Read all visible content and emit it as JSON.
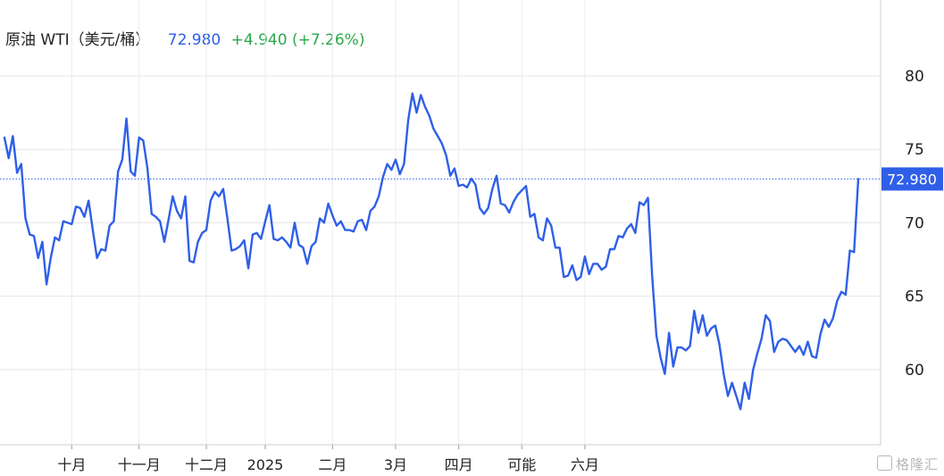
{
  "header": {
    "title": "原油 WTI（美元/桶）",
    "price": "72.980",
    "change": "+4.940 (+7.26%)"
  },
  "watermark": "格隆汇",
  "colors": {
    "line": "#2f5fe8",
    "price_label_bg": "#2f5fe8",
    "change_up": "#2aa84a",
    "grid": "#e6e6e6"
  },
  "chart_data": {
    "type": "line",
    "title": "原油 WTI（美元/桶）",
    "xlabel": "",
    "ylabel": "",
    "ylim": [
      55.5,
      85
    ],
    "y_ticks": [
      80,
      75,
      70,
      65,
      60
    ],
    "grid": true,
    "legend": "none",
    "last_price_label": "72.980",
    "x_tick_labels": [
      "十月",
      "十一月",
      "十二月",
      "2025",
      "二月",
      "3月",
      "四月",
      "可能",
      "六月"
    ],
    "x_tick_index": [
      16,
      32,
      48,
      62,
      78,
      93,
      108,
      123,
      138
    ],
    "series": [
      {
        "name": "",
        "values": [
          75.8,
          74.4,
          75.9,
          73.4,
          74.0,
          70.3,
          69.2,
          69.1,
          67.6,
          68.7,
          65.8,
          67.6,
          69.0,
          68.8,
          70.1,
          70.0,
          69.9,
          71.1,
          71.0,
          70.4,
          71.5,
          69.5,
          67.6,
          68.2,
          68.1,
          69.8,
          70.1,
          73.5,
          74.3,
          77.1,
          73.5,
          73.2,
          75.8,
          75.6,
          73.7,
          70.6,
          70.4,
          70.1,
          68.7,
          70.2,
          71.8,
          70.8,
          70.3,
          71.8,
          67.4,
          67.3,
          68.7,
          69.3,
          69.5,
          71.5,
          72.1,
          71.8,
          72.3,
          70.3,
          68.1,
          68.2,
          68.4,
          68.8,
          66.9,
          69.2,
          69.3,
          68.9,
          70.1,
          71.2,
          68.9,
          68.8,
          69.0,
          68.7,
          68.3,
          70.0,
          68.5,
          68.3,
          67.2,
          68.4,
          68.7,
          70.3,
          70.0,
          71.3,
          70.5,
          69.8,
          70.1,
          69.5,
          69.5,
          69.4,
          70.1,
          70.2,
          69.5,
          70.8,
          71.1,
          71.8,
          73.1,
          74.0,
          73.6,
          74.3,
          73.3,
          74.0,
          77.0,
          78.8,
          77.5,
          78.7,
          77.9,
          77.3,
          76.4,
          75.9,
          75.4,
          74.6,
          73.2,
          73.7,
          72.5,
          72.6,
          72.4,
          73.0,
          72.6,
          71.0,
          70.6,
          71.0,
          72.3,
          73.2,
          71.3,
          71.2,
          70.7,
          71.4,
          71.9,
          72.2,
          72.5,
          70.4,
          70.6,
          69.0,
          68.8,
          70.3,
          69.8,
          68.3,
          68.3,
          66.3,
          66.4,
          67.1,
          66.1,
          66.3,
          67.7,
          66.5,
          67.2,
          67.2,
          66.8,
          67.0,
          68.2,
          68.2,
          69.1,
          69.0,
          69.6,
          69.9,
          69.3,
          71.4,
          71.2,
          71.7,
          66.4,
          62.3,
          60.8,
          59.7,
          62.5,
          60.2,
          61.5,
          61.5,
          61.3,
          61.6,
          64.0,
          62.5,
          63.7,
          62.3,
          62.8,
          63.0,
          61.7,
          59.7,
          58.2,
          59.1,
          58.2,
          57.3,
          59.1,
          58.0,
          60.0,
          61.1,
          62.1,
          63.7,
          63.3,
          61.2,
          61.9,
          62.1,
          62.0,
          61.6,
          61.2,
          61.6,
          61.0,
          61.9,
          60.9,
          60.8,
          62.4,
          63.4,
          62.9,
          63.5,
          64.7,
          65.3,
          65.1,
          68.1,
          68.0,
          72.98
        ]
      }
    ]
  }
}
